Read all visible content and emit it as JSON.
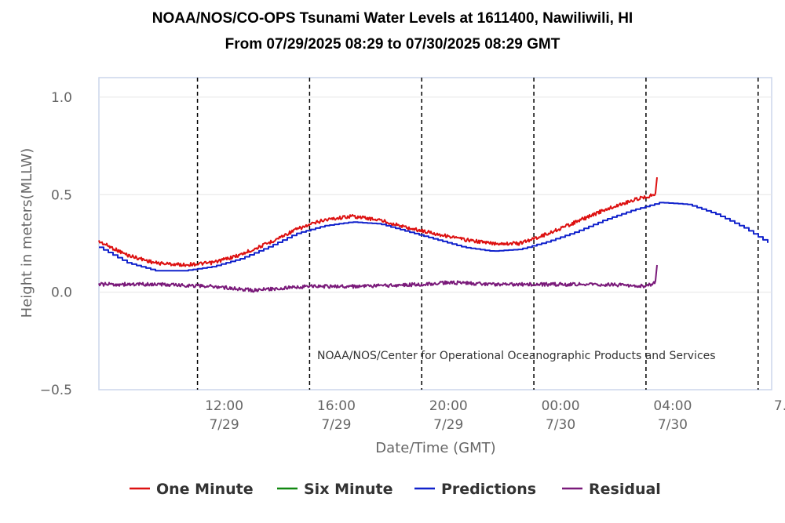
{
  "chart_data": {
    "type": "line",
    "title": "NOAA/NOS/CO-OPS Tsunami Water Levels at 1611400, Nawiliwili, HI",
    "subtitle": "From 07/29/2025 08:29 to 07/30/2025 08:29 GMT",
    "xlabel": "Date/Time (GMT)",
    "ylabel": "Height in meters(MLLW)",
    "credit": "NOAA/NOS/Center for Operational Oceanographic Products and Services",
    "x_range": [
      "2025-07-29 08:29",
      "2025-07-30 08:29"
    ],
    "ylim": [
      -0.5,
      1.1
    ],
    "y_ticks": [
      {
        "value": 1.0,
        "label": "1.0"
      },
      {
        "value": 0.5,
        "label": "0.5"
      },
      {
        "value": 0.0,
        "label": "0.0"
      },
      {
        "value": -0.5,
        "label": "−0.5"
      }
    ],
    "x_ticks": [
      {
        "time": "2025-07-29 12:00",
        "line1": "12:00",
        "line2": "7/29"
      },
      {
        "time": "2025-07-29 16:00",
        "line1": "16:00",
        "line2": "7/29"
      },
      {
        "time": "2025-07-29 20:00",
        "line1": "20:00",
        "line2": "7/29"
      },
      {
        "time": "2025-07-30 00:00",
        "line1": "00:00",
        "line2": "7/30"
      },
      {
        "time": "2025-07-30 04:00",
        "line1": "04:00",
        "line2": "7/30"
      },
      {
        "time": "2025-07-30 08:00",
        "line1": "7…",
        "line2": ""
      }
    ],
    "grid": "horizontal",
    "legend_position": "bottom",
    "series": [
      {
        "name": "One Minute",
        "color": "#dd1111",
        "x": [
          "2025-07-29 08:29",
          "2025-07-29 09:30",
          "2025-07-29 10:30",
          "2025-07-29 11:30",
          "2025-07-29 12:30",
          "2025-07-29 13:30",
          "2025-07-29 14:30",
          "2025-07-29 15:30",
          "2025-07-29 16:30",
          "2025-07-29 17:30",
          "2025-07-29 18:30",
          "2025-07-29 19:30",
          "2025-07-29 20:30",
          "2025-07-29 21:30",
          "2025-07-29 22:30",
          "2025-07-29 23:30",
          "2025-07-30 00:30",
          "2025-07-30 01:30",
          "2025-07-30 02:30",
          "2025-07-30 03:30",
          "2025-07-30 04:00",
          "2025-07-30 04:20",
          "2025-07-30 04:22",
          "2025-07-30 04:25"
        ],
        "values": [
          0.26,
          0.19,
          0.15,
          0.14,
          0.15,
          0.19,
          0.25,
          0.32,
          0.37,
          0.39,
          0.37,
          0.33,
          0.3,
          0.27,
          0.25,
          0.25,
          0.3,
          0.36,
          0.42,
          0.47,
          0.49,
          0.5,
          0.55,
          0.62
        ]
      },
      {
        "name": "Six Minute",
        "color": "#118811",
        "x": [],
        "values": []
      },
      {
        "name": "Predictions",
        "color": "#1122cc",
        "x": [
          "2025-07-29 08:29",
          "2025-07-29 09:30",
          "2025-07-29 10:30",
          "2025-07-29 11:30",
          "2025-07-29 12:30",
          "2025-07-29 13:30",
          "2025-07-29 14:30",
          "2025-07-29 15:30",
          "2025-07-29 16:30",
          "2025-07-29 17:30",
          "2025-07-29 18:30",
          "2025-07-29 19:30",
          "2025-07-29 20:30",
          "2025-07-29 21:30",
          "2025-07-29 22:30",
          "2025-07-29 23:30",
          "2025-07-30 00:30",
          "2025-07-30 01:30",
          "2025-07-30 02:30",
          "2025-07-30 03:30",
          "2025-07-30 04:30",
          "2025-07-30 05:30",
          "2025-07-30 06:30",
          "2025-07-30 07:30",
          "2025-07-30 08:29"
        ],
        "values": [
          0.23,
          0.15,
          0.11,
          0.11,
          0.13,
          0.17,
          0.23,
          0.3,
          0.34,
          0.36,
          0.35,
          0.31,
          0.27,
          0.23,
          0.21,
          0.22,
          0.26,
          0.31,
          0.37,
          0.42,
          0.46,
          0.45,
          0.4,
          0.33,
          0.24
        ]
      },
      {
        "name": "Residual",
        "color": "#7a1a7a",
        "x": [
          "2025-07-29 08:29",
          "2025-07-29 10:30",
          "2025-07-29 12:30",
          "2025-07-29 14:00",
          "2025-07-29 16:00",
          "2025-07-29 18:00",
          "2025-07-29 20:00",
          "2025-07-29 21:00",
          "2025-07-29 22:30",
          "2025-07-30 00:30",
          "2025-07-30 02:30",
          "2025-07-30 04:00",
          "2025-07-30 04:20",
          "2025-07-30 04:22",
          "2025-07-30 04:25"
        ],
        "values": [
          0.04,
          0.04,
          0.03,
          0.01,
          0.03,
          0.03,
          0.04,
          0.05,
          0.04,
          0.04,
          0.04,
          0.03,
          0.05,
          0.1,
          0.17
        ]
      }
    ]
  }
}
